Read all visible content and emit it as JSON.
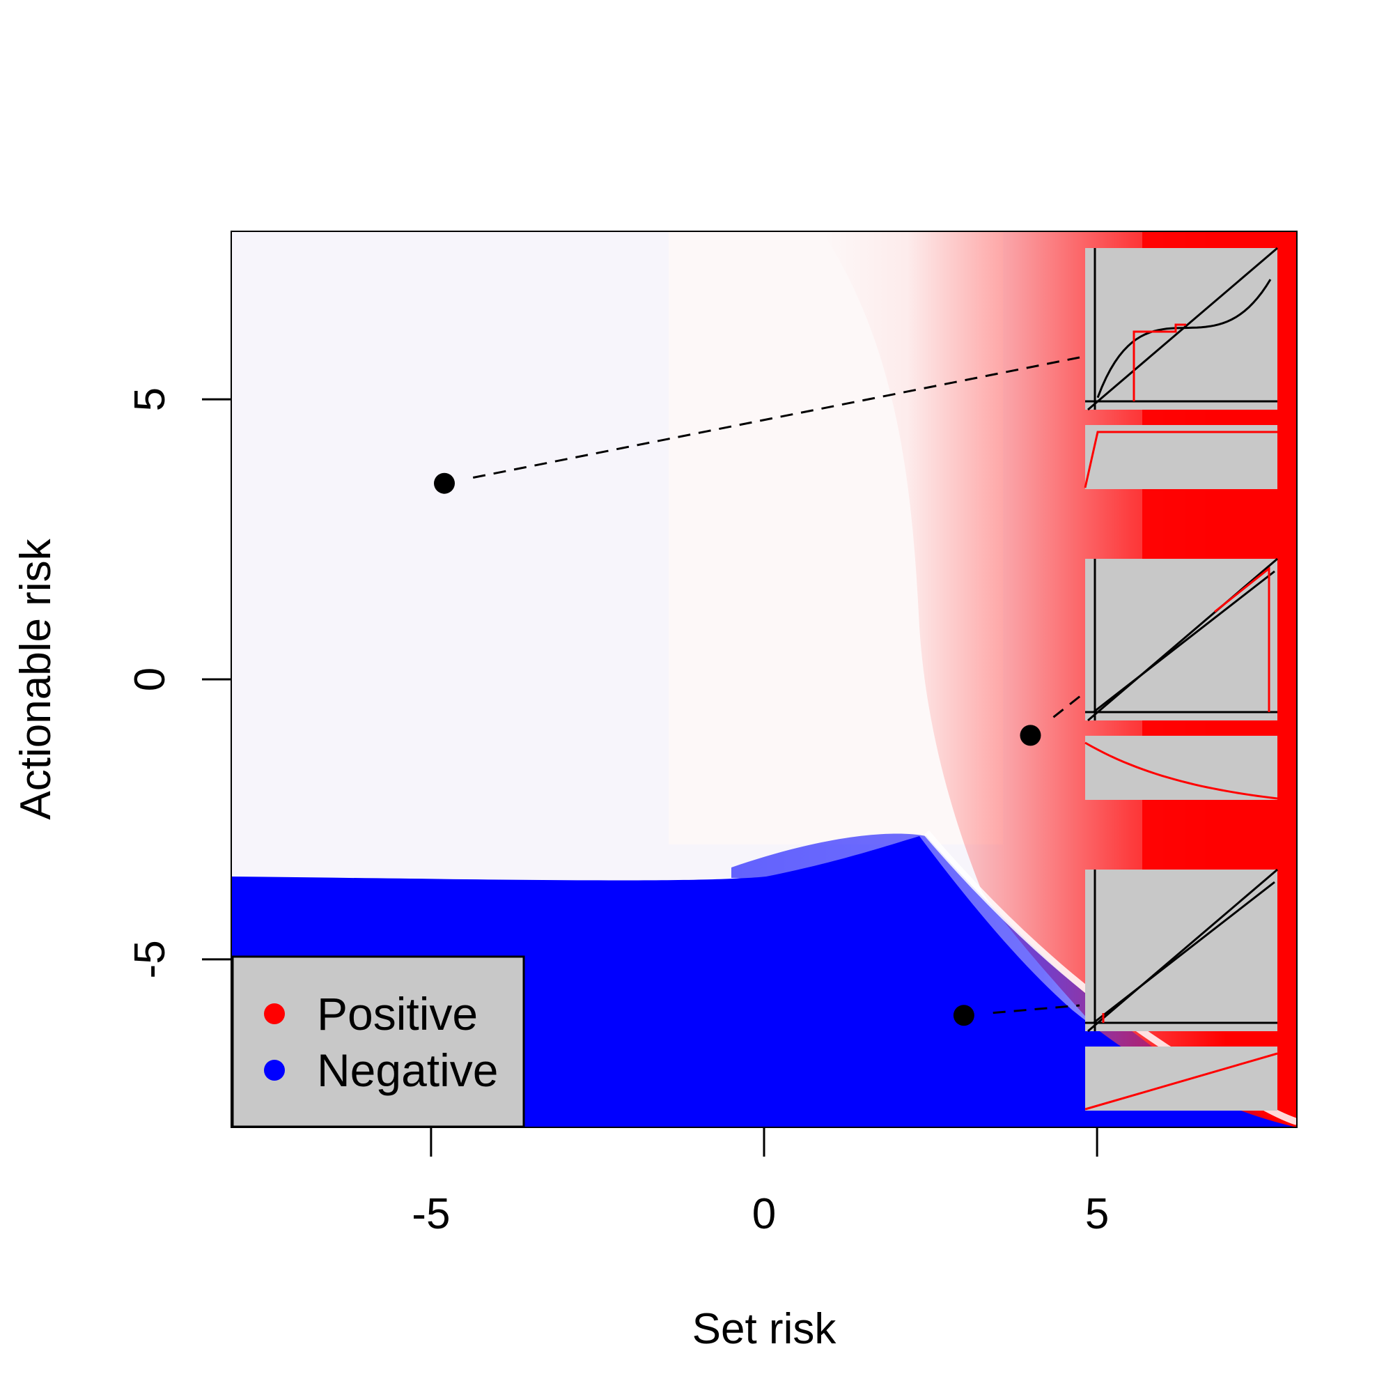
{
  "chart_data": {
    "type": "heatmap",
    "xlabel": "Set risk",
    "ylabel": "Actionable risk",
    "xlim": [
      -8,
      8
    ],
    "ylim": [
      -8,
      8
    ],
    "x_ticks": [
      {
        "value": -5,
        "label": "-5"
      },
      {
        "value": 0,
        "label": "0"
      },
      {
        "value": 5,
        "label": "5"
      }
    ],
    "y_ticks": [
      {
        "value": -5,
        "label": "-5"
      },
      {
        "value": 0,
        "label": "0"
      },
      {
        "value": 5,
        "label": "5"
      }
    ],
    "grid": false,
    "colors": {
      "positive": "#ff0000",
      "negative": "#0000ff",
      "neutral": "#ffffff",
      "inset_background": "#c8c8c8"
    },
    "legend": {
      "position": "bottom-left",
      "entries": [
        {
          "label": "Positive",
          "color": "#ff0000"
        },
        {
          "label": "Negative",
          "color": "#0000ff"
        }
      ]
    },
    "highlighted_points": [
      {
        "x": -4.8,
        "y": 3.5
      },
      {
        "x": 4.0,
        "y": -1.0
      },
      {
        "x": 3.0,
        "y": -6.0
      }
    ],
    "insets": [
      {
        "id": "top",
        "curve": "sigmoid",
        "hist": "plateau"
      },
      {
        "id": "middle",
        "curve": "identity",
        "hist": "decay"
      },
      {
        "id": "bottom",
        "curve": "identity",
        "hist": "ramp"
      }
    ]
  }
}
